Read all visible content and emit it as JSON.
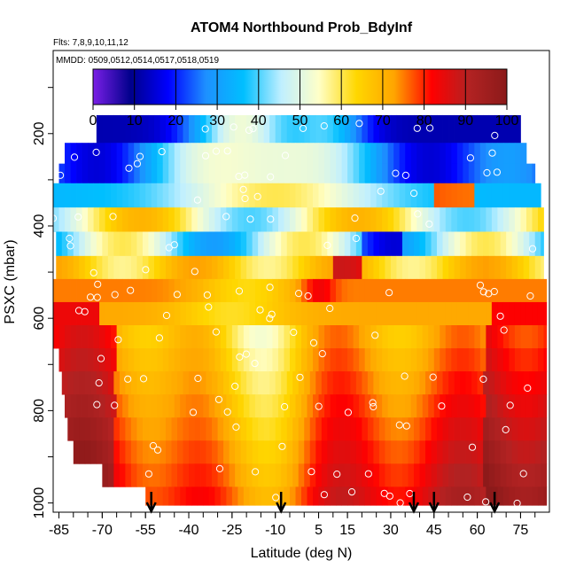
{
  "chart_data": {
    "type": "heatmap",
    "title": "ATOM4 Northbound Prob_BdyInf",
    "subtitle_flights": "Flts: 7,8,9,10,11,12",
    "subtitle_dates": "MMDD: 0509,0512,0514,0517,0518,0519",
    "xlabel": "Latitude (deg N)",
    "ylabel": "PSXC (mbar)",
    "x_ticks": [
      "-85",
      "-70",
      "-55",
      "-40",
      "-25",
      "-10",
      "5",
      "15",
      "30",
      "45",
      "60",
      "75"
    ],
    "x_tick_values": [
      -85,
      -70,
      -55,
      -40,
      -25,
      -10,
      5,
      15,
      30,
      45,
      60,
      75
    ],
    "y_ticks": [
      "200",
      "400",
      "600",
      "800",
      "1000"
    ],
    "y_tick_values": [
      200,
      400,
      600,
      800,
      1000
    ],
    "xlim": [
      -87,
      85
    ],
    "ylim": [
      1020,
      20
    ],
    "colorbar": {
      "ticks": [
        "0",
        "10",
        "20",
        "30",
        "40",
        "50",
        "60",
        "70",
        "80",
        "90",
        "100"
      ],
      "tick_values": [
        0,
        10,
        20,
        30,
        40,
        50,
        60,
        70,
        80,
        90,
        100
      ],
      "range": [
        0,
        100
      ],
      "colors": [
        "#7a1fe6",
        "#00008b",
        "#0000ff",
        "#1e90ff",
        "#00bfff",
        "#bfefff",
        "#ffffc8",
        "#ffd700",
        "#ffa500",
        "#ff0000",
        "#b22222",
        "#8b1a1a"
      ]
    },
    "arrows_latitude": [
      -53,
      -8,
      38,
      45,
      66
    ],
    "pressure_bins": [
      {
        "p": 190,
        "lat_min": -72,
        "lat_max": 75
      },
      {
        "p": 250,
        "lat_min": -83,
        "lat_max": 77
      },
      {
        "p": 280,
        "lat_min": -85,
        "lat_max": 80
      },
      {
        "p": 335,
        "lat_min": -87,
        "lat_max": 82
      },
      {
        "p": 385,
        "lat_min": -87,
        "lat_max": 83
      },
      {
        "p": 440,
        "lat_min": -86,
        "lat_max": 83
      },
      {
        "p": 490,
        "lat_min": -86,
        "lat_max": 83
      },
      {
        "p": 540,
        "lat_min": -87,
        "lat_max": 84
      },
      {
        "p": 590,
        "lat_min": -87,
        "lat_max": 84
      },
      {
        "p": 640,
        "lat_min": -87,
        "lat_max": 84
      },
      {
        "p": 690,
        "lat_min": -85,
        "lat_max": 84
      },
      {
        "p": 740,
        "lat_min": -84,
        "lat_max": 84
      },
      {
        "p": 790,
        "lat_min": -83,
        "lat_max": 84
      },
      {
        "p": 840,
        "lat_min": -82,
        "lat_max": 84
      },
      {
        "p": 890,
        "lat_min": -80,
        "lat_max": 84
      },
      {
        "p": 940,
        "lat_min": -70,
        "lat_max": 84
      },
      {
        "p": 990,
        "lat_min": -55,
        "lat_max": 84
      }
    ]
  }
}
